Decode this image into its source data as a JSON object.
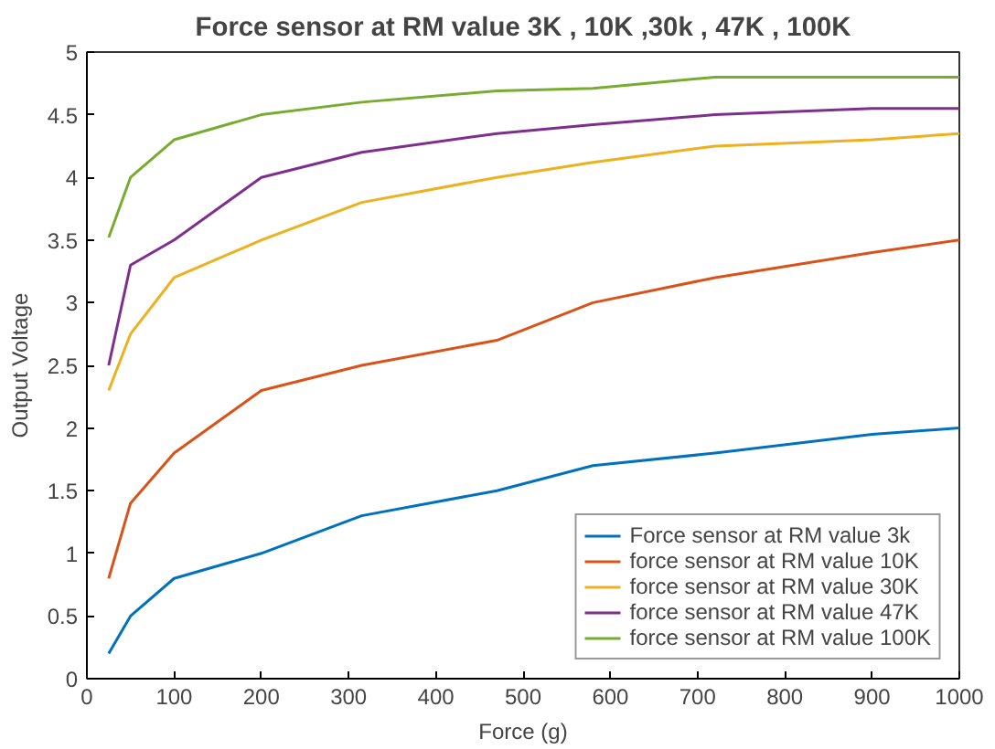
{
  "chart_data": {
    "type": "line",
    "title": "Force sensor at RM value 3K , 10K ,30k , 47K , 100K",
    "xlabel": "Force (g)",
    "ylabel": "Output Voltage",
    "x": [
      25,
      50,
      100,
      200,
      315,
      470,
      580,
      720,
      900,
      1000
    ],
    "series": [
      {
        "name": "Force sensor at RM value 3k",
        "color": "#0072bd",
        "values": [
          0.2,
          0.5,
          0.8,
          1.0,
          1.3,
          1.5,
          1.7,
          1.8,
          1.95,
          2.0
        ]
      },
      {
        "name": "force sensor at RM value 10K",
        "color": "#d95319",
        "values": [
          0.8,
          1.4,
          1.8,
          2.3,
          2.5,
          2.7,
          3.0,
          3.2,
          3.4,
          3.5
        ]
      },
      {
        "name": "force sensor at RM value 30K",
        "color": "#edb120",
        "values": [
          2.3,
          2.75,
          3.2,
          3.5,
          3.8,
          4.0,
          4.12,
          4.25,
          4.3,
          4.35
        ]
      },
      {
        "name": "force sensor at RM value 47K",
        "color": "#7e2f8e",
        "values": [
          2.5,
          3.3,
          3.5,
          4.0,
          4.2,
          4.35,
          4.42,
          4.5,
          4.55,
          4.55
        ]
      },
      {
        "name": "force sensor at RM value 100K",
        "color": "#77ac30",
        "values": [
          3.52,
          4.0,
          4.3,
          4.5,
          4.6,
          4.69,
          4.71,
          4.8,
          4.8,
          4.8
        ]
      }
    ],
    "xlim": [
      0,
      1000
    ],
    "ylim": [
      0,
      5
    ],
    "xticks": [
      0,
      100,
      200,
      300,
      400,
      500,
      600,
      700,
      800,
      900,
      1000
    ],
    "yticks": [
      0,
      0.5,
      1,
      1.5,
      2,
      2.5,
      3,
      3.5,
      4,
      4.5,
      5
    ],
    "grid": false,
    "legend": "bottom right",
    "line_style": "solid",
    "marker": "none"
  }
}
